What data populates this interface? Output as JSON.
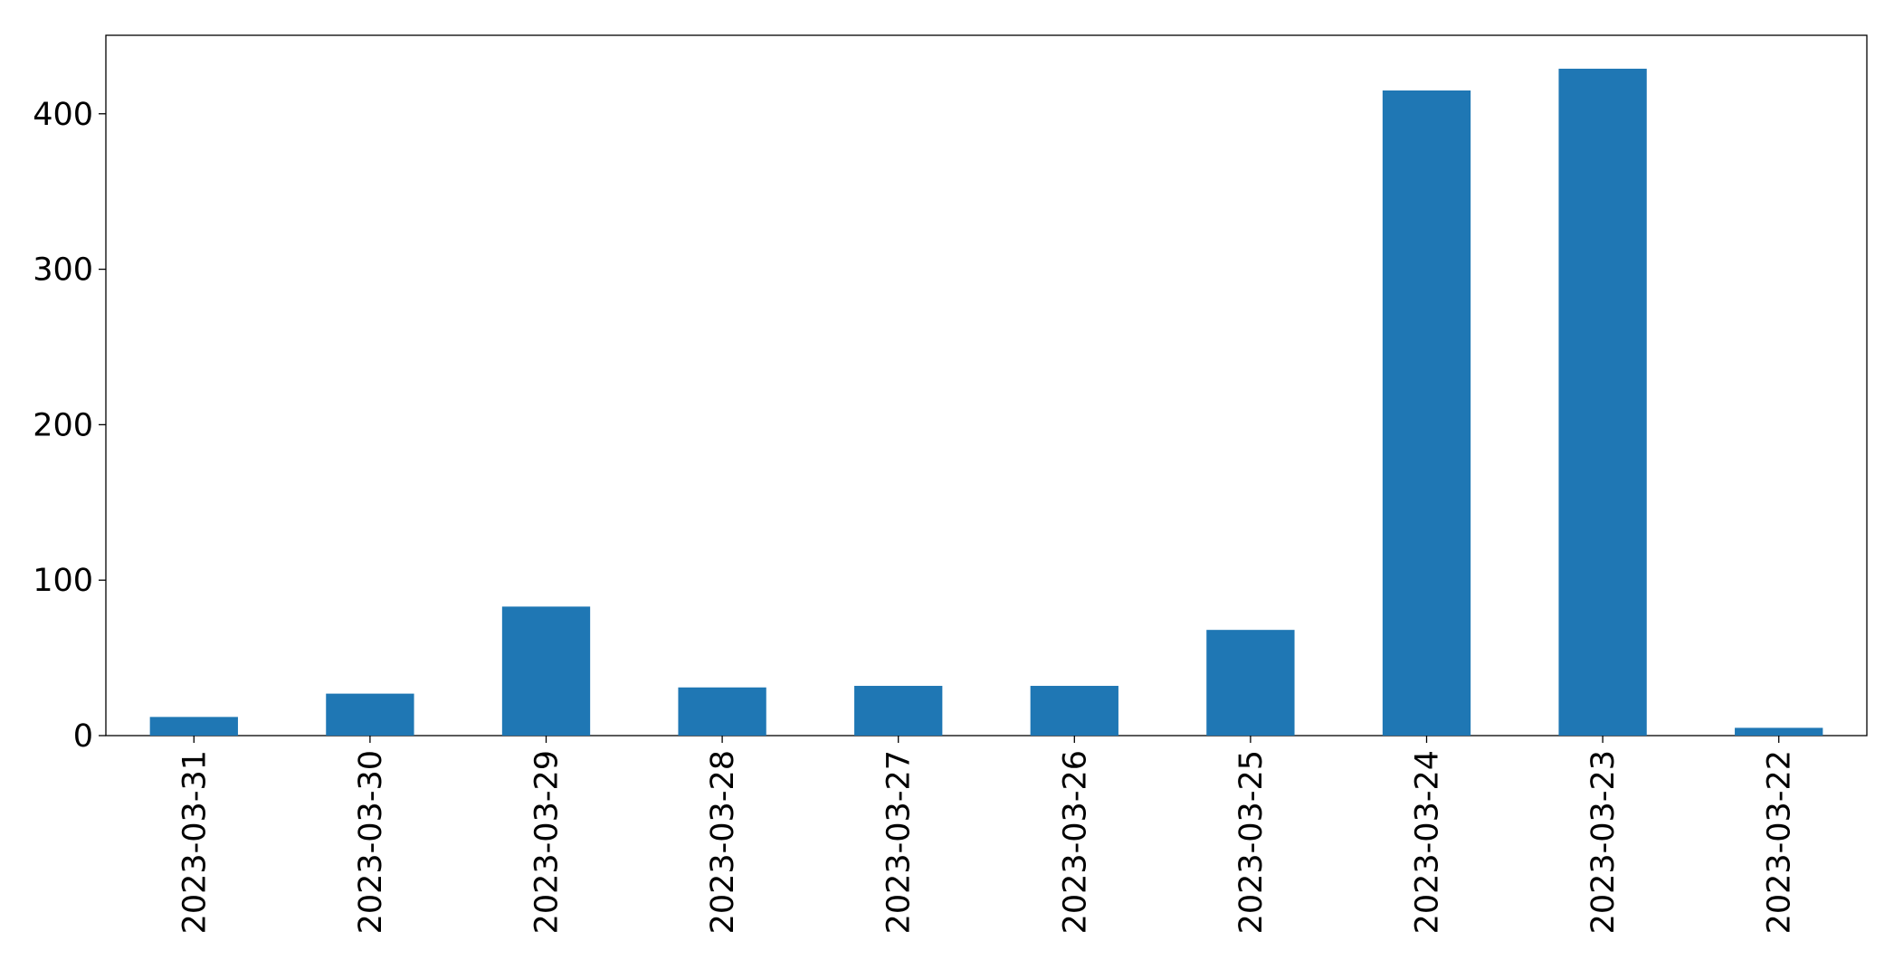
{
  "chart_data": {
    "type": "bar",
    "categories": [
      "2023-03-31",
      "2023-03-30",
      "2023-03-29",
      "2023-03-28",
      "2023-03-27",
      "2023-03-26",
      "2023-03-25",
      "2023-03-24",
      "2023-03-23",
      "2023-03-22"
    ],
    "values": [
      12,
      27,
      83,
      31,
      32,
      32,
      68,
      415,
      429,
      5
    ],
    "color": "#1f77b4",
    "ylim": [
      0,
      450.5
    ],
    "yticks": [
      0,
      100,
      200,
      300,
      400
    ],
    "grid": false
  }
}
